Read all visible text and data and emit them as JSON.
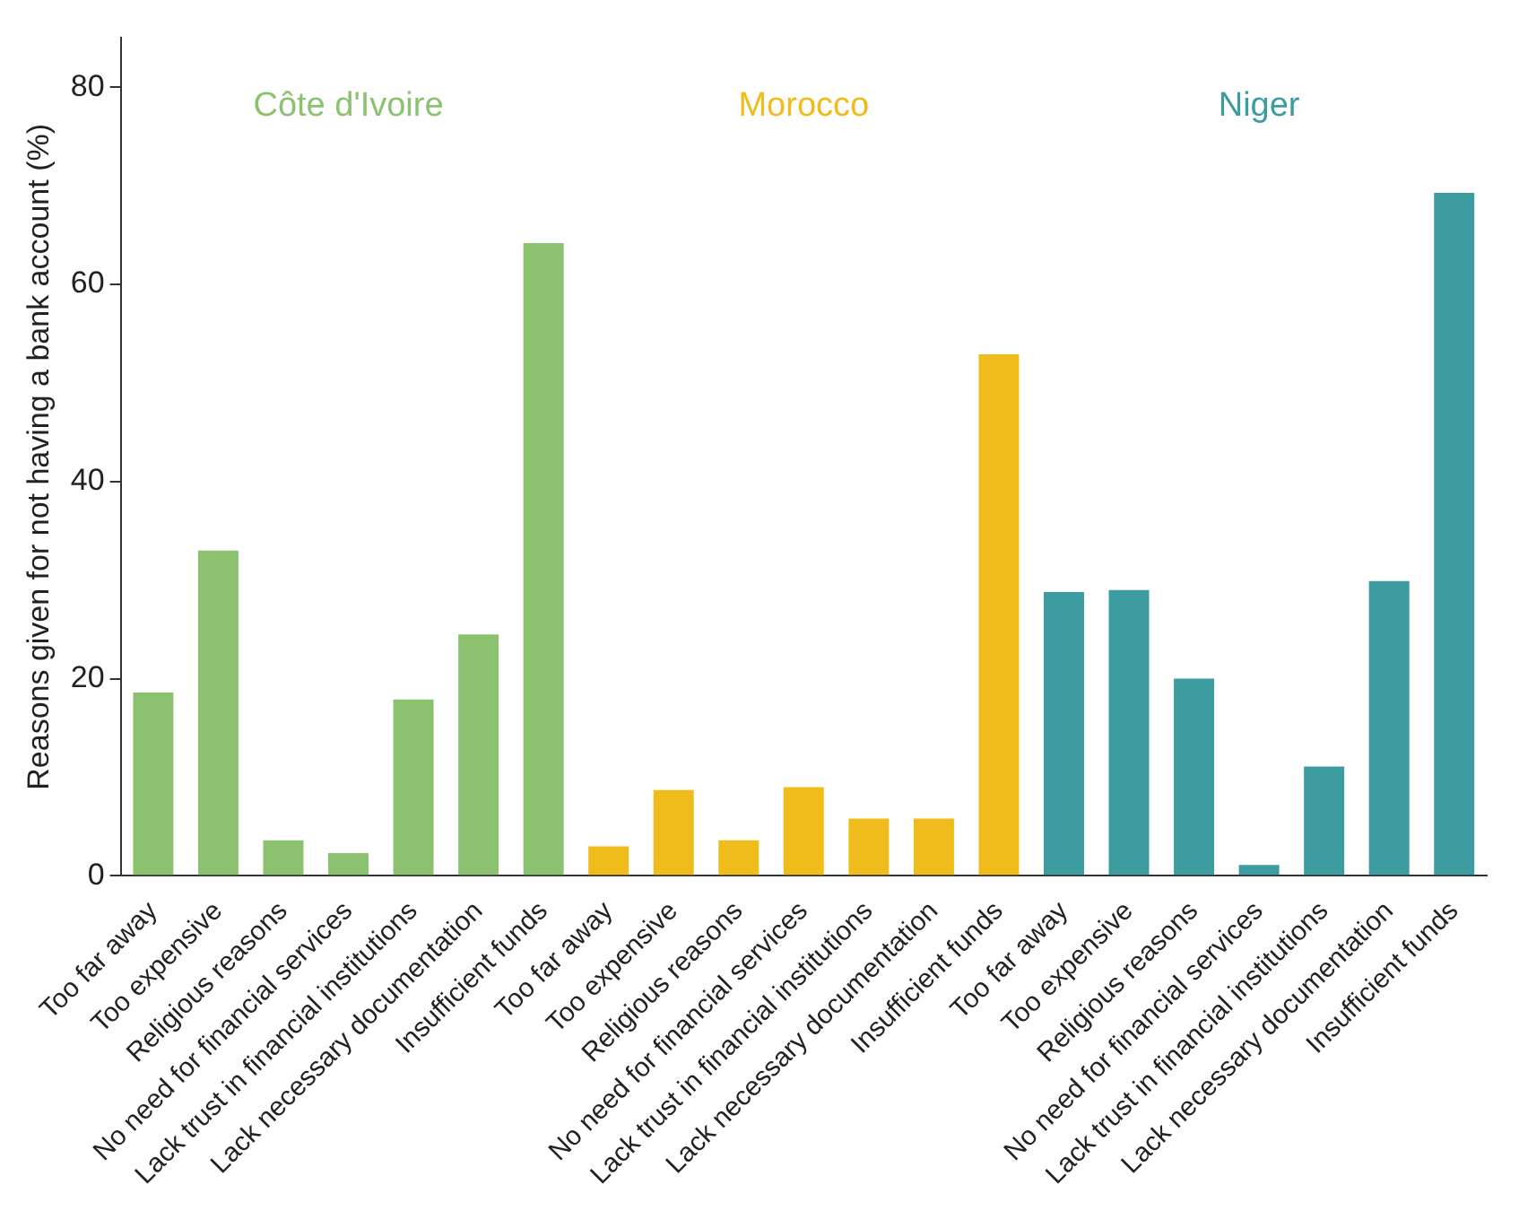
{
  "chart_data": {
    "type": "bar",
    "ylabel": "Reasons given for not having a bank account (%)",
    "categories": [
      "Too far away",
      "Too expensive",
      "Religious reasons",
      "No need for financial services",
      "Lack trust in financial institutions",
      "Lack necessary documentation",
      "Insufficient funds",
      "Too far away",
      "Too expensive",
      "Religious reasons",
      "No need for financial services",
      "Lack trust in financial institutions",
      "Lack necessary documentation",
      "Insufficient funds",
      "Too far away",
      "Too expensive",
      "Religious reasons",
      "No need for financial services",
      "Lack trust in financial institutions",
      "Lack necessary documentation",
      "Insufficient funds"
    ],
    "series": [
      {
        "name": "Côte d'Ivoire",
        "color": "#8cc26f",
        "values": [
          18.6,
          33,
          3.6,
          2.3,
          17.9,
          24.5,
          64.2,
          null,
          null,
          null,
          null,
          null,
          null,
          null,
          null,
          null,
          null,
          null,
          null,
          null,
          null
        ]
      },
      {
        "name": "Morocco",
        "color": "#f0bc1c",
        "values": [
          null,
          null,
          null,
          null,
          null,
          null,
          null,
          3,
          8.7,
          3.6,
          9,
          5.8,
          5.8,
          52.9,
          null,
          null,
          null,
          null,
          null,
          null,
          null
        ]
      },
      {
        "name": "Niger",
        "color": "#3d9ca0",
        "values": [
          null,
          null,
          null,
          null,
          null,
          null,
          null,
          null,
          null,
          null,
          null,
          null,
          null,
          null,
          28.8,
          29,
          20,
          1.1,
          11.1,
          29.9,
          69.3
        ]
      }
    ],
    "ylim": [
      0,
      85
    ],
    "yticks": [
      0,
      20,
      40,
      60,
      80
    ],
    "grid": false,
    "legend": false
  }
}
